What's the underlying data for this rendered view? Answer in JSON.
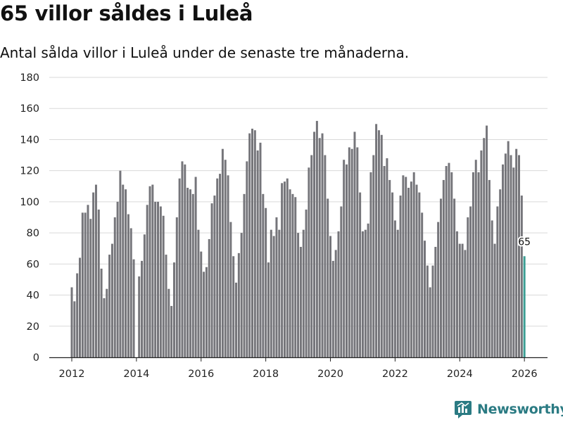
{
  "header": {
    "title": "65 villor såldes i Luleå",
    "subtitle": "Antal sålda villor i Luleå under de senaste tre månaderna."
  },
  "brand": {
    "name": "Newsworthy",
    "color": "#2b7b83"
  },
  "chart_data": {
    "type": "bar",
    "title": "65 villor såldes i Luleå",
    "subtitle": "Antal sålda villor i Luleå under de senaste tre månaderna.",
    "xlabel": "",
    "ylabel": "",
    "ylim": [
      0,
      180
    ],
    "y_ticks": [
      0,
      20,
      40,
      60,
      80,
      100,
      120,
      140,
      160,
      180
    ],
    "x_ticks": [
      2012,
      2014,
      2016,
      2018,
      2020,
      2022,
      2024,
      2026
    ],
    "x_start": "2012-01",
    "x_end": "2026-01",
    "grid": true,
    "bar_color": "#75757a",
    "highlight_color": "#3b9e94",
    "highlight_label": "65",
    "values": [
      45,
      36,
      54,
      64,
      93,
      93,
      98,
      89,
      106,
      111,
      95,
      57,
      38,
      44,
      66,
      73,
      90,
      100,
      120,
      111,
      108,
      92,
      83,
      63,
      0,
      52,
      62,
      79,
      98,
      110,
      111,
      100,
      100,
      97,
      91,
      66,
      44,
      33,
      61,
      90,
      115,
      126,
      124,
      109,
      108,
      105,
      116,
      82,
      68,
      55,
      58,
      76,
      99,
      104,
      115,
      118,
      134,
      127,
      117,
      87,
      65,
      48,
      67,
      80,
      105,
      126,
      144,
      147,
      146,
      133,
      138,
      105,
      96,
      61,
      82,
      78,
      90,
      82,
      112,
      113,
      115,
      108,
      105,
      103,
      80,
      71,
      82,
      95,
      122,
      130,
      145,
      152,
      141,
      144,
      130,
      102,
      78,
      62,
      69,
      81,
      97,
      127,
      124,
      135,
      134,
      145,
      135,
      106,
      81,
      82,
      86,
      119,
      130,
      150,
      146,
      143,
      123,
      128,
      114,
      106,
      88,
      82,
      104,
      117,
      116,
      109,
      113,
      119,
      111,
      106,
      93,
      75,
      59,
      45,
      59,
      71,
      87,
      102,
      114,
      123,
      125,
      119,
      102,
      81,
      73,
      73,
      69,
      90,
      97,
      119,
      127,
      119,
      133,
      141,
      149,
      114,
      88,
      73,
      97,
      108,
      124,
      131,
      139,
      130,
      122,
      134,
      130,
      104,
      65
    ]
  }
}
